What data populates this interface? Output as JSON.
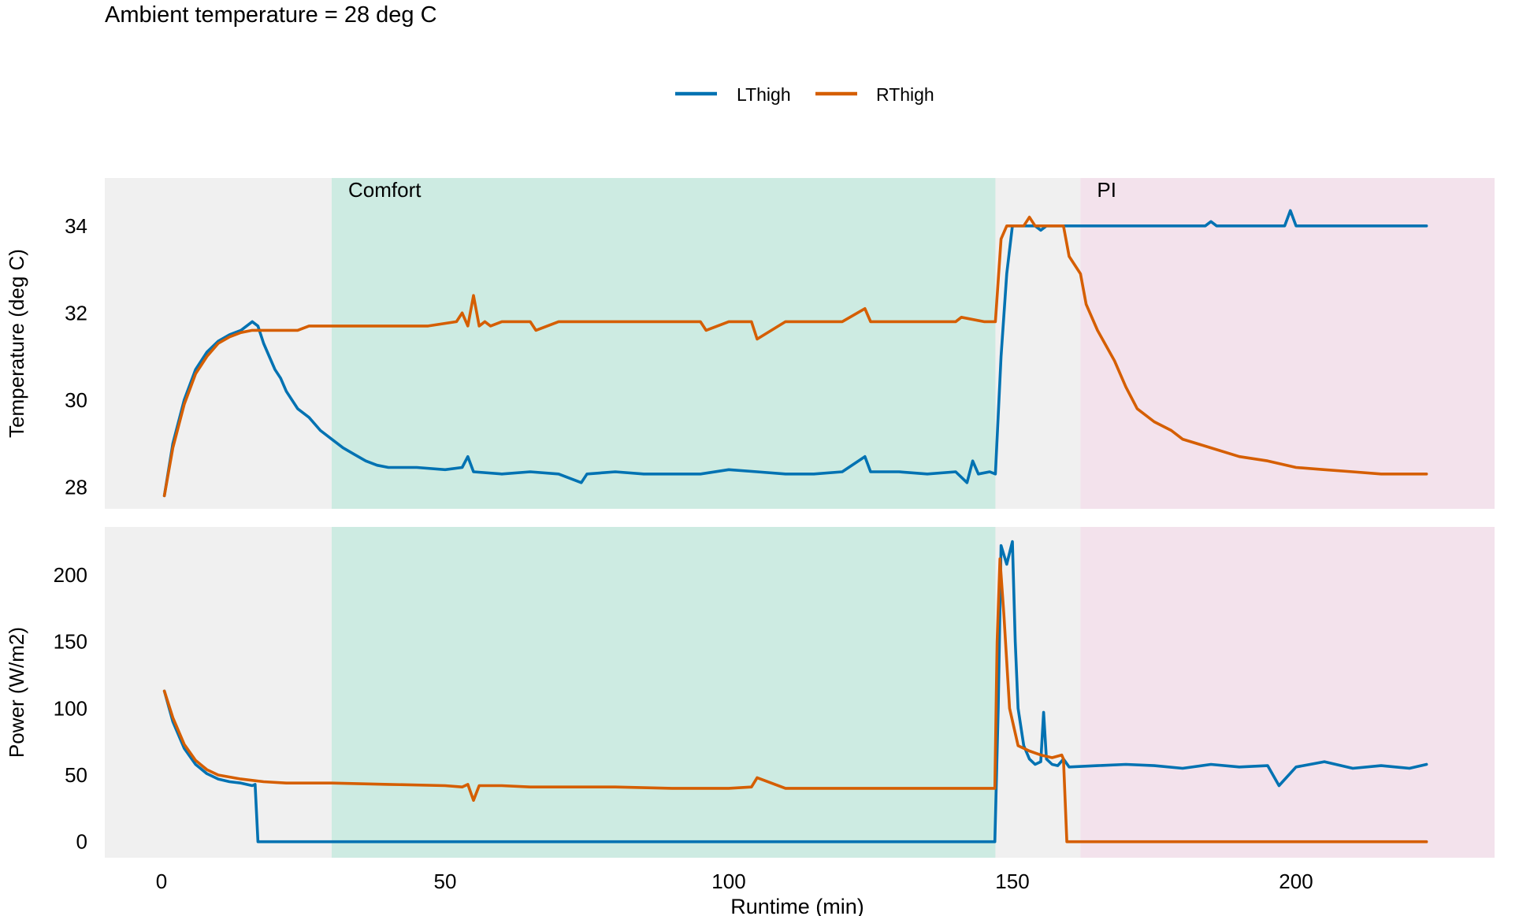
{
  "chart_data": {
    "type": "line",
    "title": "Ambient temperature = 28 deg C",
    "xlabel": "Runtime (min)",
    "xlim": [
      -10,
      235
    ],
    "xticks": [
      0,
      50,
      100,
      150,
      200
    ],
    "legend_position": "top-center",
    "grid": false,
    "series_colors": {
      "LThigh": "#0072B2",
      "RThigh": "#D55E00"
    },
    "background_color": "#F0F0F0",
    "regions": [
      {
        "label": "Comfort",
        "x_start": 30,
        "x_end": 147,
        "color": "#CDEBE2"
      },
      {
        "label": "PI",
        "x_start": 162,
        "x_end": 235,
        "color": "#F3E2EC"
      }
    ],
    "panels": [
      {
        "ylabel": "Temperature (deg C)",
        "ylim": [
          27.5,
          35.1
        ],
        "yticks": [
          28,
          30,
          32,
          34
        ],
        "series": [
          {
            "name": "LThigh",
            "x": [
              0.5,
              2,
              4,
              6,
              8,
              10,
              12,
              14,
              15,
              16,
              17,
              18,
              19,
              20,
              21,
              22,
              24,
              26,
              28,
              30,
              32,
              34,
              36,
              38,
              40,
              45,
              50,
              53,
              54,
              55,
              60,
              65,
              70,
              74,
              75,
              80,
              85,
              90,
              95,
              100,
              105,
              110,
              115,
              120,
              124,
              125,
              130,
              135,
              140,
              142,
              143,
              144,
              146,
              147,
              148,
              149,
              150,
              152,
              154,
              155,
              156,
              160,
              170,
              180,
              184,
              185,
              186,
              190,
              198,
              199,
              200,
              210,
              223
            ],
            "y": [
              27.8,
              29.0,
              30.0,
              30.7,
              31.1,
              31.35,
              31.5,
              31.6,
              31.7,
              31.8,
              31.7,
              31.3,
              31.0,
              30.7,
              30.5,
              30.2,
              29.8,
              29.6,
              29.3,
              29.1,
              28.9,
              28.75,
              28.6,
              28.5,
              28.45,
              28.45,
              28.4,
              28.45,
              28.7,
              28.35,
              28.3,
              28.35,
              28.3,
              28.1,
              28.3,
              28.35,
              28.3,
              28.3,
              28.3,
              28.4,
              28.35,
              28.3,
              28.3,
              28.35,
              28.7,
              28.35,
              28.35,
              28.3,
              28.35,
              28.1,
              28.6,
              28.3,
              28.35,
              28.3,
              31.0,
              32.9,
              34.0,
              34.0,
              34.0,
              33.9,
              34.0,
              34.0,
              34.0,
              34.0,
              34.0,
              34.1,
              34.0,
              34.0,
              34.0,
              34.35,
              34.0,
              34.0,
              34.0
            ]
          },
          {
            "name": "RThigh",
            "x": [
              0.5,
              2,
              4,
              6,
              8,
              10,
              12,
              14,
              16,
              18,
              20,
              24,
              26,
              28,
              30,
              40,
              47,
              52,
              53,
              54,
              55,
              56,
              57,
              58,
              60,
              65,
              66,
              70,
              80,
              85,
              90,
              95,
              96,
              100,
              104,
              105,
              110,
              120,
              124,
              125,
              130,
              140,
              141,
              145,
              147,
              148,
              149,
              150,
              152,
              153,
              154,
              158,
              159,
              160,
              162,
              163,
              165,
              168,
              170,
              172,
              175,
              178,
              180,
              185,
              190,
              195,
              200,
              205,
              210,
              215,
              220,
              223
            ],
            "y": [
              27.8,
              28.9,
              29.9,
              30.6,
              31.0,
              31.3,
              31.45,
              31.55,
              31.6,
              31.6,
              31.6,
              31.6,
              31.7,
              31.7,
              31.7,
              31.7,
              31.7,
              31.8,
              32.0,
              31.7,
              32.4,
              31.7,
              31.8,
              31.7,
              31.8,
              31.8,
              31.6,
              31.8,
              31.8,
              31.8,
              31.8,
              31.8,
              31.6,
              31.8,
              31.8,
              31.4,
              31.8,
              31.8,
              32.1,
              31.8,
              31.8,
              31.8,
              31.9,
              31.8,
              31.8,
              33.7,
              34.0,
              34.0,
              34.0,
              34.2,
              34.0,
              34.0,
              34.0,
              33.3,
              32.9,
              32.2,
              31.6,
              30.9,
              30.3,
              29.8,
              29.5,
              29.3,
              29.1,
              28.9,
              28.7,
              28.6,
              28.45,
              28.4,
              28.35,
              28.3,
              28.3,
              28.3
            ]
          }
        ]
      },
      {
        "ylabel": "Power (W/m2)",
        "ylim": [
          -12,
          236
        ],
        "yticks": [
          0,
          50,
          100,
          150,
          200
        ],
        "series": [
          {
            "name": "LThigh",
            "x": [
              0.5,
              2,
              4,
              6,
              8,
              10,
              12,
              14,
              16,
              16.5,
              17,
              30,
              60,
              100,
              146.9,
              147.5,
              148,
              149,
              150,
              150.5,
              151,
              152,
              153,
              154,
              155,
              155.5,
              156,
              157,
              158,
              159,
              160,
              165,
              170,
              175,
              180,
              185,
              190,
              195,
              197,
              200,
              205,
              210,
              215,
              220,
              223
            ],
            "y": [
              113,
              90,
              70,
              58,
              51,
              47,
              45,
              44,
              42,
              43,
              0,
              0,
              0,
              0,
              0,
              100,
              222,
              208,
              225,
              150,
              100,
              72,
              62,
              58,
              60,
              97,
              62,
              58,
              57,
              62,
              56,
              57,
              58,
              57,
              55,
              58,
              56,
              57,
              42,
              56,
              60,
              55,
              57,
              55,
              58
            ]
          },
          {
            "name": "RThigh",
            "x": [
              0.5,
              2,
              4,
              6,
              8,
              10,
              14,
              18,
              22,
              30,
              40,
              50,
              53,
              54,
              55,
              56,
              60,
              65,
              70,
              80,
              90,
              100,
              104,
              105,
              110,
              120,
              130,
              140,
              146.9,
              147.3,
              147.8,
              148.5,
              149.5,
              151,
              153,
              155,
              157,
              158.7,
              159,
              159.6,
              170,
              190,
              223
            ],
            "y": [
              113,
              93,
              73,
              61,
              54,
              50,
              47,
              45,
              44,
              44,
              43,
              42,
              41,
              43,
              31,
              42,
              42,
              41,
              41,
              41,
              40,
              40,
              41,
              48,
              40,
              40,
              40,
              40,
              40,
              150,
              212,
              170,
              100,
              72,
              68,
              65,
              63,
              65,
              62,
              0,
              0,
              0,
              0
            ]
          }
        ]
      }
    ]
  }
}
